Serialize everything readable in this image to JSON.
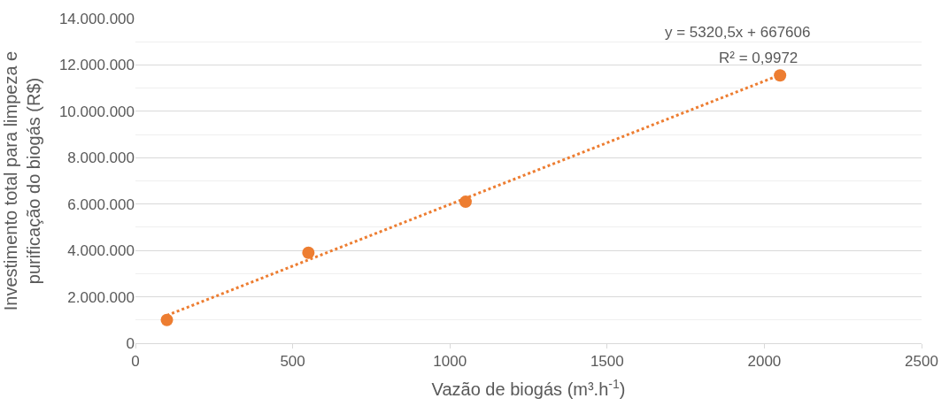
{
  "chart_data": {
    "type": "scatter",
    "xlabel": "Vazão de biogás (m³.h$^{-1}$)",
    "ylabel": "Investimento total para limpeza e\npurificação do biogás (R$)",
    "series": [
      {
        "color": "#ed7d31",
        "marker": "circle",
        "x": [
          100,
          550,
          1050,
          2050
        ],
        "values": [
          1000000,
          3900000,
          6100000,
          11550000
        ]
      },
      {
        "type": "line",
        "color": "#ed7d31",
        "line_style": "dotted",
        "x": [
          100,
          2050
        ],
        "values": [
          1200000,
          11570000
        ]
      }
    ],
    "annotations": [
      "y = 5320,5x + 667606",
      "R² = 0,9972"
    ],
    "xlim": [
      0,
      2500
    ],
    "xticks": [
      0,
      500,
      1000,
      1500,
      2000,
      2500
    ],
    "ylim": [
      0,
      14000000
    ],
    "yticks": [
      {
        "value": 0,
        "label": "0"
      },
      {
        "value": 2000000,
        "label": "2.000.000"
      },
      {
        "value": 4000000,
        "label": "4.000.000"
      },
      {
        "value": 6000000,
        "label": "6.000.000"
      },
      {
        "value": 8000000,
        "label": "8.000.000"
      },
      {
        "value": 10000000,
        "label": "10.000.000"
      },
      {
        "value": 12000000,
        "label": "12.000.000"
      },
      {
        "value": 14000000,
        "label": "14.000.000"
      }
    ],
    "grid": "y",
    "legend": false
  }
}
